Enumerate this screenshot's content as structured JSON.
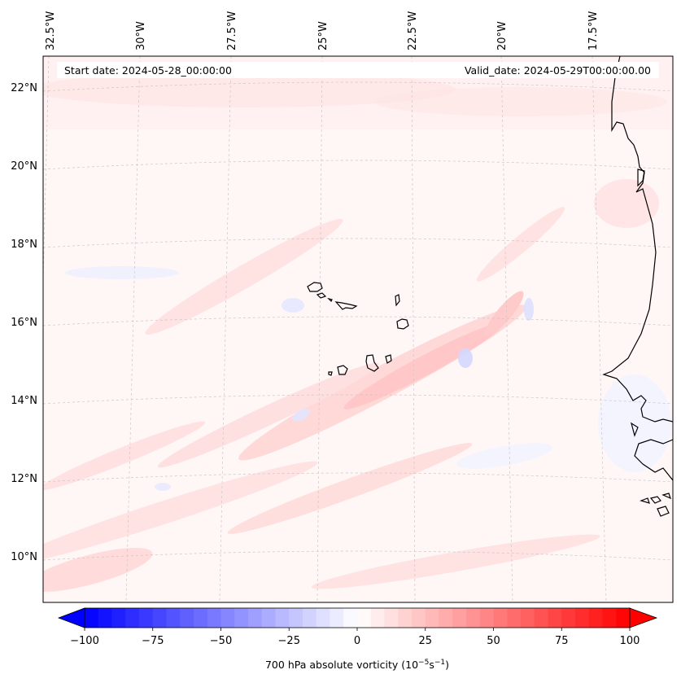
{
  "map": {
    "start_date": "Start date: 2024-05-28_00:00:00",
    "valid_date": "Valid_date: 2024-05-29T00:00:00.00",
    "longitude_labels": [
      "32.5°W",
      "30°W",
      "27.5°W",
      "25°W",
      "22.5°W",
      "20°W",
      "17.5°W"
    ],
    "latitude_labels": [
      "22°N",
      "20°N",
      "18°N",
      "16°N",
      "14°N",
      "12°N",
      "10°N"
    ],
    "field": "700 hPa absolute vorticity",
    "gridline_color": "#c8c8c8",
    "coastline_color": "#000000"
  },
  "colorbar": {
    "label": "700 hPa absolute vorticity (10",
    "label_exp1": "−5",
    "label_mid": "s",
    "label_exp2": "−1",
    "label_end": ")",
    "ticks": [
      "−100",
      "−75",
      "−50",
      "−25",
      "0",
      "25",
      "50",
      "75",
      "100"
    ],
    "min": -100,
    "max": 100,
    "low_color": "#0000ff",
    "mid_color": "#ffffff",
    "high_color": "#ff0000"
  }
}
